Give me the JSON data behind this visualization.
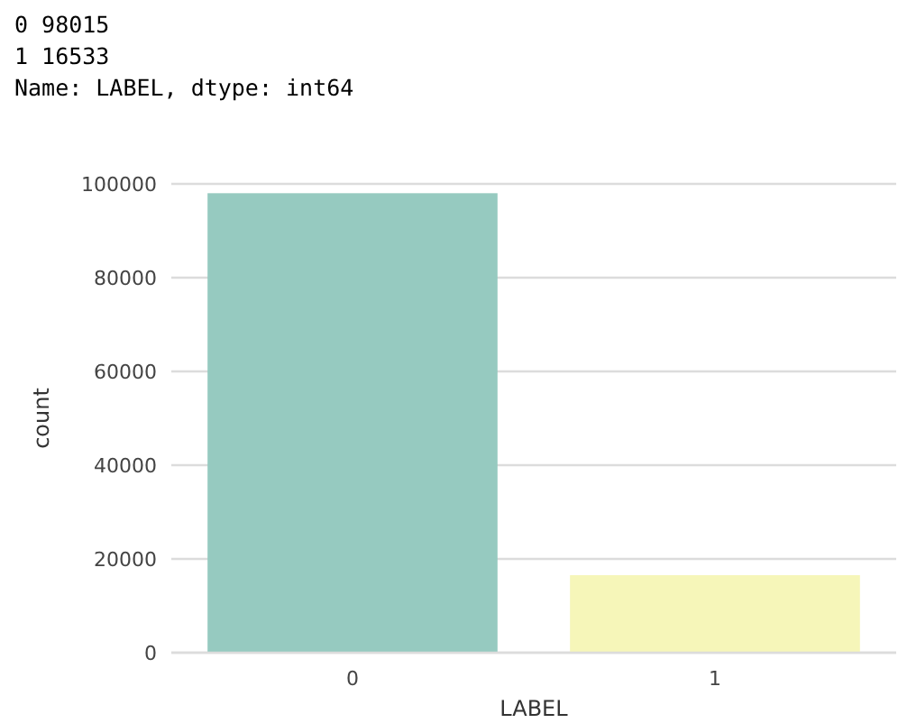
{
  "chart_data": {
    "type": "bar",
    "annotations": [
      "0    98015",
      "1    16533",
      "Name: LABEL, dtype: int64"
    ],
    "categories": [
      "0",
      "1"
    ],
    "values": [
      98015,
      16533
    ],
    "colors": [
      "#96cac0",
      "#f6f6b9"
    ],
    "xlabel": "LABEL",
    "ylabel": "count",
    "ylim": [
      0,
      100000
    ],
    "yticks": [
      0,
      20000,
      40000,
      60000,
      80000,
      100000
    ],
    "grid": "y"
  }
}
